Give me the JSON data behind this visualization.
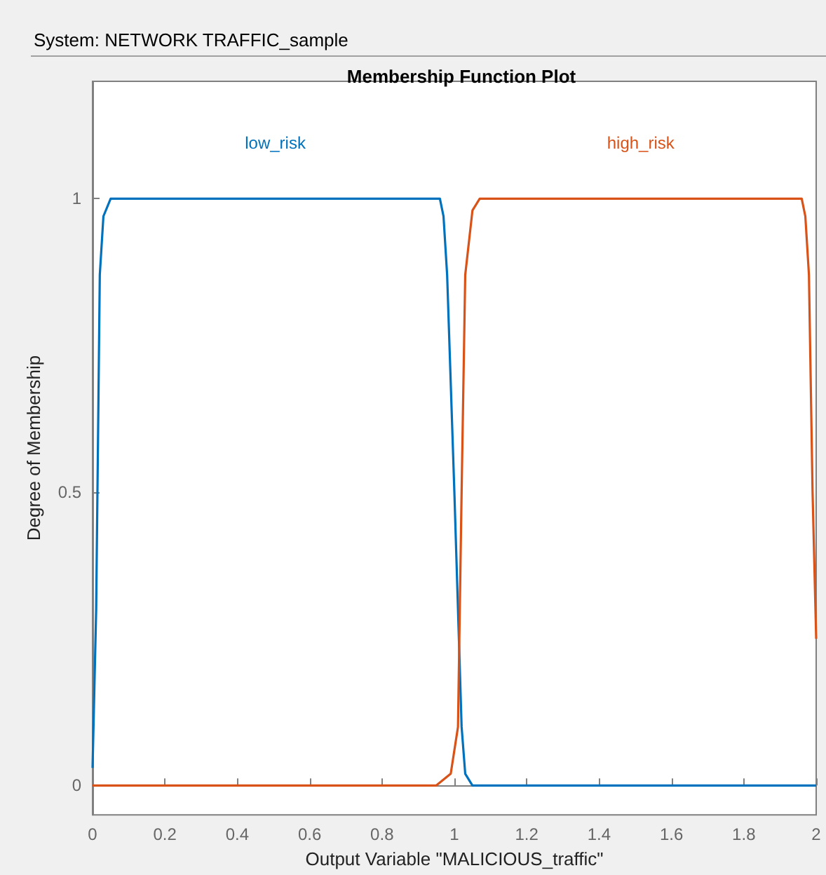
{
  "chart_data": {
    "type": "line",
    "title": "Membership Function Plot",
    "xlabel": "Output Variable \"MALICIOUS_traffic\"",
    "ylabel": "Degree of Membership",
    "annotations": [
      "System: NETWORK TRAFFIC_sample"
    ],
    "series": [
      {
        "name": "low_risk",
        "color": "#0072bd",
        "x": [
          0,
          0.01,
          0.02,
          0.03,
          0.05,
          0.96,
          0.97,
          0.98,
          1.0,
          1.02,
          1.03,
          1.05,
          2
        ],
        "values": [
          0.03,
          0.3,
          0.87,
          0.97,
          1,
          1,
          0.97,
          0.87,
          0.5,
          0.1,
          0.02,
          0,
          0
        ]
      },
      {
        "name": "high_risk",
        "color": "#d95319",
        "x": [
          0,
          0.95,
          0.99,
          1.01,
          1.02,
          1.03,
          1.05,
          1.07,
          1.96,
          1.97,
          1.98,
          1.99,
          2
        ],
        "values": [
          0,
          0,
          0.02,
          0.1,
          0.5,
          0.87,
          0.98,
          1,
          1,
          0.97,
          0.87,
          0.5,
          0.25
        ]
      }
    ],
    "xlim": [
      0,
      2
    ],
    "xticks": [
      0,
      0.2,
      0.4,
      0.6,
      0.8,
      1,
      1.2,
      1.4,
      1.6,
      1.8,
      2
    ],
    "ylim": [
      -0.05,
      1.2
    ],
    "yticks": [
      0,
      0.5,
      1
    ],
    "marker": "none",
    "line_style": "solid"
  }
}
